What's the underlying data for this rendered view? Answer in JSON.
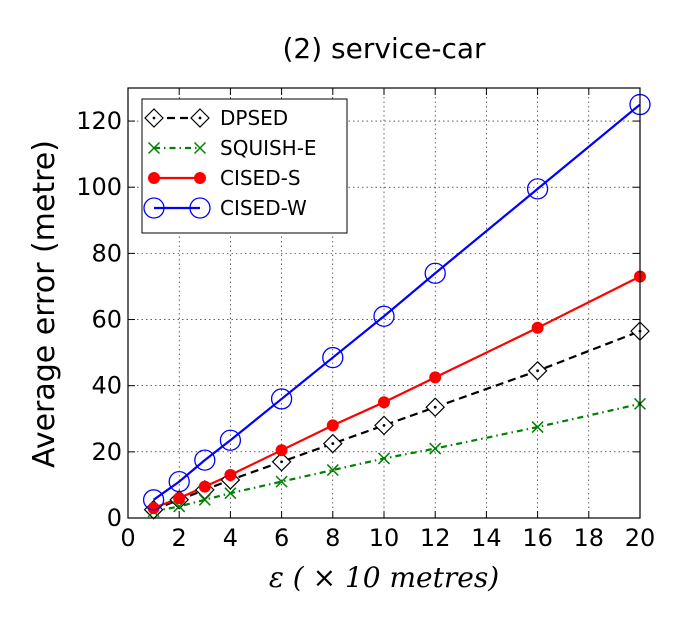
{
  "chart_data": {
    "type": "line",
    "title": "(2) service-car",
    "xlabel": "ε ( × 10 metres)",
    "ylabel": "Average error (metre)",
    "xlim": [
      0,
      20
    ],
    "ylim": [
      0,
      130
    ],
    "xticks": [
      0,
      2,
      4,
      6,
      8,
      10,
      12,
      14,
      16,
      18,
      20
    ],
    "yticks": [
      0,
      20,
      40,
      60,
      80,
      100,
      120
    ],
    "grid": true,
    "legend_position": "top-left",
    "x": [
      1,
      2,
      3,
      4,
      6,
      8,
      10,
      12,
      16,
      20
    ],
    "series": [
      {
        "name": "DPSED",
        "color": "#000000",
        "linestyle": "dashed",
        "marker": "diamond-dot",
        "values": [
          2.5,
          5.5,
          8.5,
          11.5,
          17.0,
          22.5,
          28.0,
          33.5,
          44.5,
          56.5
        ]
      },
      {
        "name": "SQUISH-E",
        "color": "#008000",
        "linestyle": "dashdot",
        "marker": "x",
        "values": [
          2.0,
          3.5,
          5.5,
          7.5,
          11.0,
          14.5,
          18.0,
          21.0,
          27.5,
          34.5
        ]
      },
      {
        "name": "CISED-S",
        "color": "#ff0000",
        "linestyle": "solid",
        "marker": "filled-circle",
        "values": [
          3.0,
          6.0,
          9.5,
          13.0,
          20.5,
          28.0,
          35.0,
          42.5,
          57.5,
          73.0
        ]
      },
      {
        "name": "CISED-W",
        "color": "#0000ff",
        "linestyle": "solid",
        "marker": "open-circle",
        "values": [
          5.5,
          11.0,
          17.5,
          23.5,
          36.0,
          48.5,
          61.0,
          74.0,
          99.5,
          125.0
        ]
      }
    ]
  }
}
